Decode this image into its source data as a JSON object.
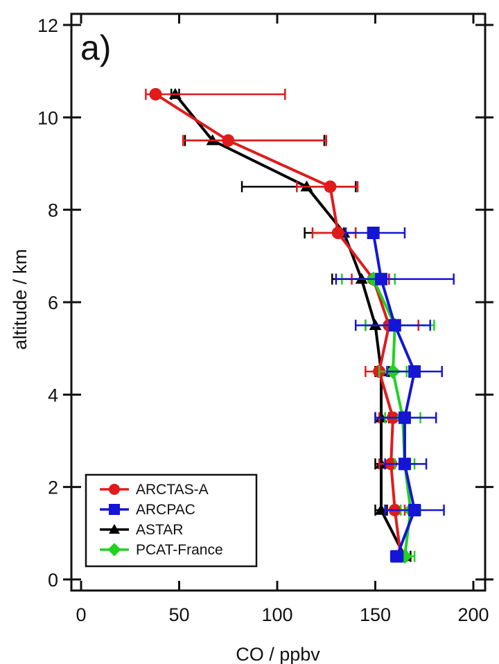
{
  "chart_data": {
    "type": "line",
    "panel_label": "a)",
    "xlabel": "CO / ppbv",
    "ylabel": "altitude / km",
    "xlim": [
      -5,
      205
    ],
    "ylim": [
      -0.2,
      12.2
    ],
    "xticks": [
      0,
      50,
      100,
      150,
      200
    ],
    "yticks": [
      0,
      2,
      4,
      6,
      8,
      10,
      12
    ],
    "legend_position": "bottom-left",
    "series": [
      {
        "name": "ASTAR",
        "color": "#000000",
        "marker": "triangle",
        "points": [
          {
            "x": 165,
            "y": 0.5,
            "xmin": 162,
            "xmax": 168
          },
          {
            "x": 153,
            "y": 1.5,
            "xmin": 150,
            "xmax": 156
          },
          {
            "x": 153,
            "y": 2.5,
            "xmin": 150,
            "xmax": 157
          },
          {
            "x": 153,
            "y": 3.5,
            "xmin": 150,
            "xmax": 157
          },
          {
            "x": 153,
            "y": 4.5,
            "xmin": 150,
            "xmax": 157
          },
          {
            "x": 150,
            "y": 5.5,
            "xmin": 145,
            "xmax": 158
          },
          {
            "x": 143,
            "y": 6.5,
            "xmin": 128,
            "xmax": 157
          },
          {
            "x": 134,
            "y": 7.5,
            "xmin": 114,
            "xmax": 140
          },
          {
            "x": 115,
            "y": 8.5,
            "xmin": 82,
            "xmax": 140
          },
          {
            "x": 67,
            "y": 9.5,
            "xmin": 53,
            "xmax": 124
          },
          {
            "x": 48,
            "y": 10.5,
            "xmin": 46,
            "xmax": 50
          }
        ]
      },
      {
        "name": "ARCTAS-A",
        "color": "#e01b1b",
        "marker": "circle",
        "points": [
          {
            "x": 163,
            "y": 0.5,
            "xmin": 160,
            "xmax": 166
          },
          {
            "x": 160,
            "y": 1.5,
            "xmin": 155,
            "xmax": 165
          },
          {
            "x": 158,
            "y": 2.5,
            "xmin": 152,
            "xmax": 164
          },
          {
            "x": 159,
            "y": 3.5,
            "xmin": 152,
            "xmax": 166
          },
          {
            "x": 152,
            "y": 4.5,
            "xmin": 145,
            "xmax": 159
          },
          {
            "x": 157,
            "y": 5.5,
            "xmin": 145,
            "xmax": 172
          },
          {
            "x": 149,
            "y": 6.5,
            "xmin": 138,
            "xmax": 157
          },
          {
            "x": 131,
            "y": 7.5,
            "xmin": 118,
            "xmax": 140
          },
          {
            "x": 127,
            "y": 8.5,
            "xmin": 110,
            "xmax": 141
          },
          {
            "x": 75,
            "y": 9.5,
            "xmin": 52,
            "xmax": 125
          },
          {
            "x": 38,
            "y": 10.5,
            "xmin": 33,
            "xmax": 104
          }
        ]
      },
      {
        "name": "PCAT-France",
        "color": "#1fd31f",
        "marker": "diamond",
        "points": [
          {
            "x": 165,
            "y": 0.5,
            "xmin": 160,
            "xmax": 170
          },
          {
            "x": 168,
            "y": 1.5,
            "xmin": 163,
            "xmax": 173
          },
          {
            "x": 165,
            "y": 2.5,
            "xmin": 160,
            "xmax": 170
          },
          {
            "x": 164,
            "y": 3.5,
            "xmin": 155,
            "xmax": 173
          },
          {
            "x": 159,
            "y": 4.5,
            "xmin": 152,
            "xmax": 166
          },
          {
            "x": 160,
            "y": 5.5,
            "xmin": 145,
            "xmax": 180
          },
          {
            "x": 149,
            "y": 6.5,
            "xmin": 133,
            "xmax": 160
          }
        ]
      },
      {
        "name": "ARCPAC",
        "color": "#1515d6",
        "marker": "square",
        "points": [
          {
            "x": 161,
            "y": 0.5,
            "xmin": 158,
            "xmax": 164
          },
          {
            "x": 170,
            "y": 1.5,
            "xmin": 155,
            "xmax": 185
          },
          {
            "x": 165,
            "y": 2.5,
            "xmin": 155,
            "xmax": 176
          },
          {
            "x": 165,
            "y": 3.5,
            "xmin": 150,
            "xmax": 181
          },
          {
            "x": 170,
            "y": 4.5,
            "xmin": 156,
            "xmax": 184
          },
          {
            "x": 160,
            "y": 5.5,
            "xmin": 140,
            "xmax": 178
          },
          {
            "x": 153,
            "y": 6.5,
            "xmin": 130,
            "xmax": 190
          },
          {
            "x": 149,
            "y": 7.5,
            "xmin": 135,
            "xmax": 165
          }
        ]
      }
    ],
    "legend_order": [
      "ARCTAS-A",
      "ARCPAC",
      "ASTAR",
      "PCAT-France"
    ]
  }
}
